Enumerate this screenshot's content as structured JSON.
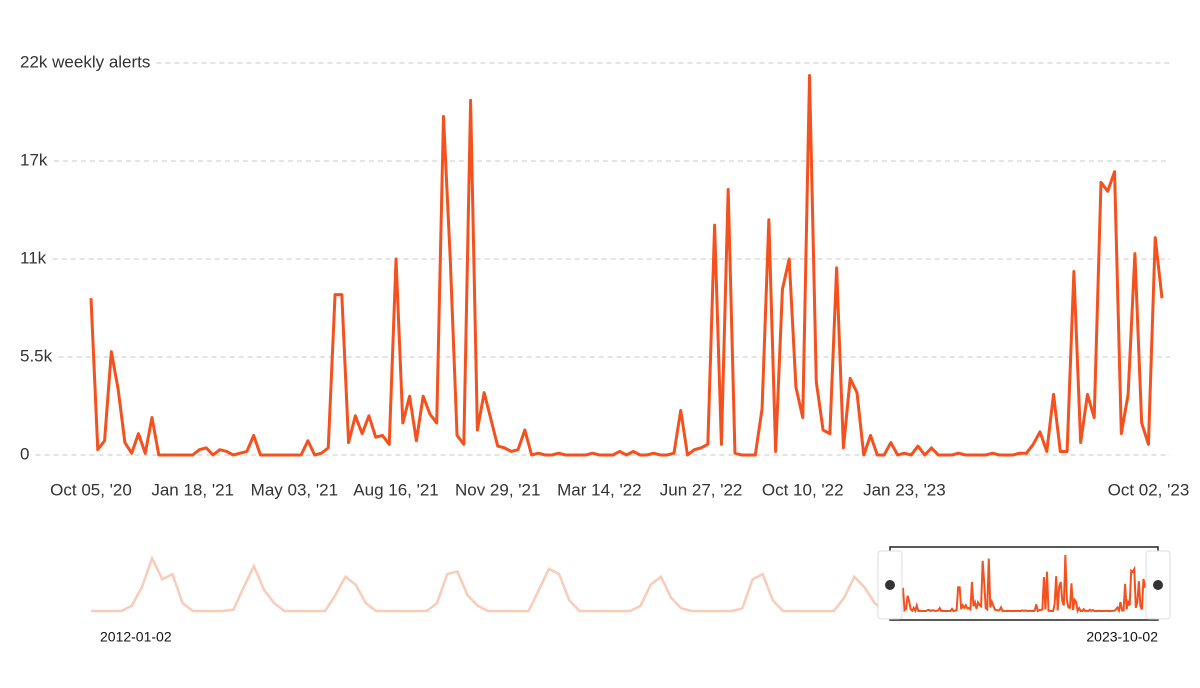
{
  "chart_data": {
    "type": "line",
    "color": "#f4511e",
    "grid": true,
    "ylim": [
      0,
      22000
    ],
    "yticks": [
      0,
      {
        "value": 5500,
        "label": "5.5k"
      },
      {
        "value": 11000,
        "label": "11k"
      },
      {
        "value": 16500,
        "label": "17k"
      },
      {
        "value": 22000,
        "label": "22k weekly alerts"
      }
    ],
    "categories": [
      "Oct 05, '20",
      null,
      null,
      null,
      null,
      null,
      null,
      null,
      null,
      null,
      null,
      null,
      null,
      null,
      null,
      "Jan 18, '21",
      null,
      null,
      null,
      null,
      null,
      null,
      null,
      null,
      null,
      null,
      null,
      null,
      null,
      null,
      "May 03, '21",
      null,
      null,
      null,
      null,
      null,
      null,
      null,
      null,
      null,
      null,
      null,
      null,
      null,
      null,
      "Aug 16, '21",
      null,
      null,
      null,
      null,
      null,
      null,
      null,
      null,
      null,
      null,
      null,
      null,
      null,
      null,
      "Nov 29, '21",
      null,
      null,
      null,
      null,
      null,
      null,
      null,
      null,
      null,
      null,
      null,
      null,
      null,
      null,
      "Mar 14, '22",
      null,
      null,
      null,
      null,
      null,
      null,
      null,
      null,
      null,
      null,
      null,
      null,
      null,
      null,
      "Jun 27, '22",
      null,
      null,
      null,
      null,
      null,
      null,
      null,
      null,
      null,
      null,
      null,
      null,
      null,
      null,
      "Oct 10, '22",
      null,
      null,
      null,
      null,
      null,
      null,
      null,
      null,
      null,
      null,
      null,
      null,
      null,
      null,
      "Jan 23, '23",
      null,
      null,
      null,
      null,
      null,
      null,
      null,
      null,
      null,
      null,
      null,
      null,
      null,
      null,
      null,
      null,
      null,
      null,
      null,
      null,
      null,
      null,
      null,
      null,
      null,
      null,
      null,
      null,
      null,
      null,
      null,
      null,
      null,
      null,
      null,
      "Oct 02, '23",
      null,
      null
    ],
    "values": [
      8800,
      300,
      800,
      5800,
      3700,
      700,
      100,
      1200,
      100,
      2100,
      0,
      0,
      0,
      0,
      0,
      0,
      300,
      400,
      0,
      300,
      200,
      0,
      100,
      200,
      1100,
      0,
      0,
      0,
      0,
      0,
      0,
      0,
      800,
      0,
      100,
      400,
      9000,
      9000,
      700,
      2200,
      1200,
      2200,
      1000,
      1100,
      600,
      11000,
      1800,
      3300,
      800,
      3300,
      2300,
      1800,
      19000,
      11000,
      1100,
      600,
      19900,
      1400,
      3500,
      2000,
      500,
      400,
      200,
      300,
      1400,
      0,
      100,
      0,
      0,
      100,
      0,
      0,
      0,
      0,
      100,
      0,
      0,
      0,
      200,
      0,
      200,
      0,
      0,
      100,
      0,
      0,
      100,
      2500,
      0,
      300,
      400,
      600,
      12900,
      600,
      14900,
      100,
      0,
      0,
      0,
      2600,
      13200,
      200,
      9300,
      11000,
      3800,
      2100,
      21300,
      4100,
      1400,
      1200,
      10500,
      400,
      4300,
      3500,
      0,
      1100,
      0,
      0,
      700,
      0,
      100,
      0,
      500,
      0,
      400,
      0,
      0,
      0,
      100,
      0,
      0,
      0,
      0,
      100,
      0,
      0,
      0,
      100,
      100,
      600,
      1300,
      200,
      3400,
      200,
      200,
      10300,
      700,
      3400,
      2100,
      15300,
      14800,
      15900,
      1200,
      3400,
      11300,
      1800,
      600,
      12200,
      8800
    ],
    "navigator": {
      "color": "#f9cbb8",
      "start_label": "2012-01-02",
      "end_label": "2023-10-02",
      "values": [
        0,
        0,
        0,
        0,
        2000,
        9000,
        20000,
        12000,
        14000,
        3000,
        0,
        0,
        0,
        0,
        500,
        9000,
        17000,
        8000,
        3000,
        0,
        0,
        0,
        0,
        0,
        6000,
        13000,
        10000,
        3000,
        0,
        0,
        0,
        0,
        0,
        0,
        3000,
        14000,
        15000,
        6000,
        2000,
        0,
        0,
        0,
        0,
        0,
        8000,
        16000,
        14000,
        4000,
        0,
        0,
        0,
        0,
        0,
        0,
        2000,
        10000,
        13000,
        5000,
        1000,
        0,
        0,
        0,
        0,
        0,
        1000,
        12000,
        14000,
        4000,
        0,
        0,
        0,
        0,
        0,
        0,
        5000,
        13000,
        9000,
        3000,
        0,
        0
      ]
    }
  }
}
